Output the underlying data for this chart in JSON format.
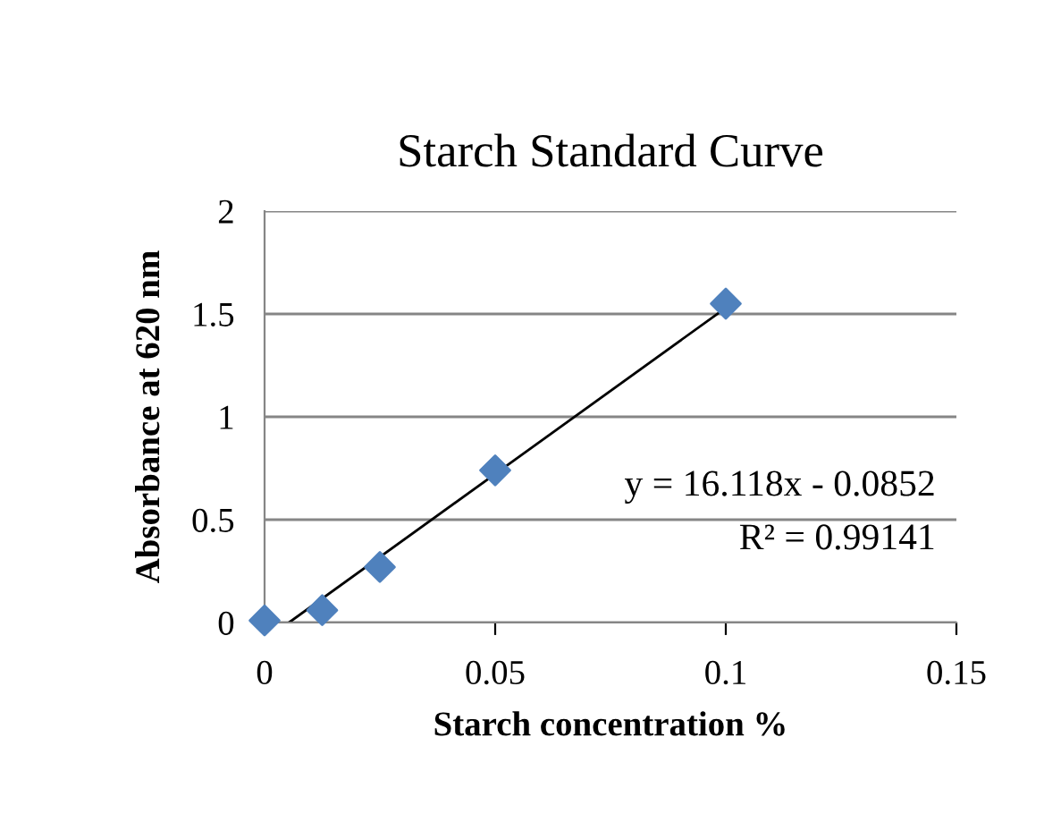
{
  "chart_data": {
    "type": "scatter",
    "title": "Starch Standard Curve",
    "xlabel": "Starch concentration %",
    "ylabel": "Absorbance at 620 nm",
    "series": [
      {
        "color": "#4f81bd",
        "marker": "diamond",
        "x": [
          0,
          0.0125,
          0.025,
          0.05,
          0.1
        ],
        "values": [
          0.01,
          0.06,
          0.27,
          0.74,
          1.55
        ]
      },
      {
        "type": "line",
        "color": "#000000",
        "marker": "none",
        "x": [
          0.0053,
          0.1
        ],
        "values": [
          0,
          1.53
        ]
      }
    ],
    "annotations": [
      "y = 16.118x - 0.0852",
      "R² = 0.99141"
    ],
    "xlim": [
      0,
      0.15
    ],
    "xticks": [
      0,
      0.05,
      0.1,
      0.15
    ],
    "ylim": [
      0,
      2
    ],
    "yticks": [
      0,
      0.5,
      1,
      1.5,
      2
    ],
    "grid": "y",
    "legend": false
  }
}
